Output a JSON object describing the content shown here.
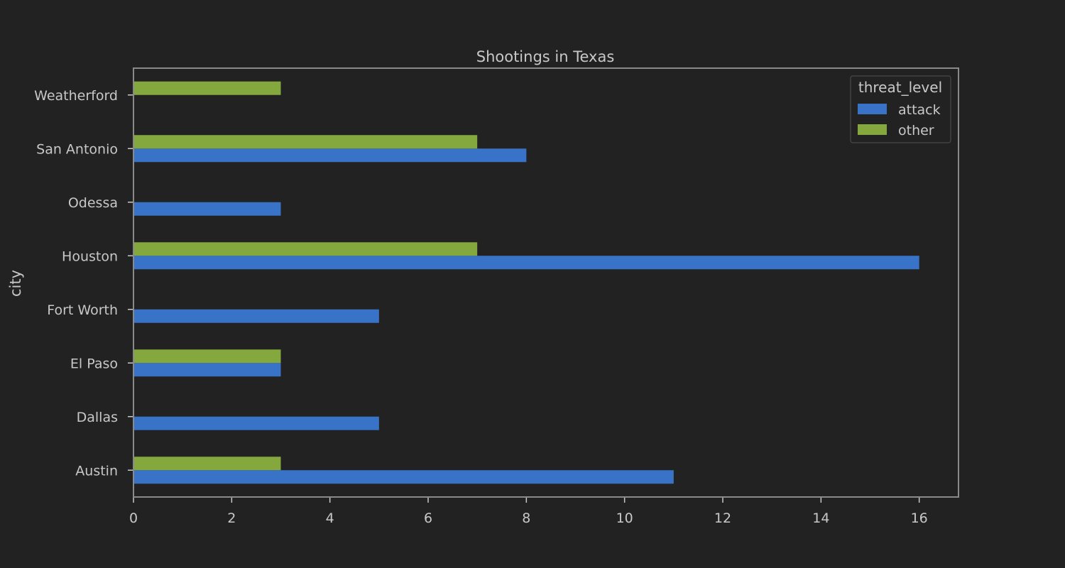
{
  "chart_data": {
    "type": "bar",
    "orientation": "horizontal",
    "title": "Shootings in Texas",
    "xlabel": "",
    "ylabel": "city",
    "xlim": [
      0,
      16.8
    ],
    "xticks": [
      "0",
      "2",
      "4",
      "6",
      "8",
      "10",
      "12",
      "14",
      "16"
    ],
    "categories": [
      "Austin",
      "Dallas",
      "El Paso",
      "Fort Worth",
      "Houston",
      "Odessa",
      "San Antonio",
      "Weatherford"
    ],
    "series": [
      {
        "name": "attack",
        "color": "#3873c8",
        "values": [
          11,
          5,
          3,
          5,
          16,
          3,
          8,
          0
        ]
      },
      {
        "name": "other",
        "color": "#84a83e",
        "values": [
          3,
          0,
          3,
          0,
          7,
          0,
          7,
          3
        ]
      }
    ],
    "legend": {
      "title": "threat_level",
      "position": "top-right"
    },
    "grid": false
  }
}
